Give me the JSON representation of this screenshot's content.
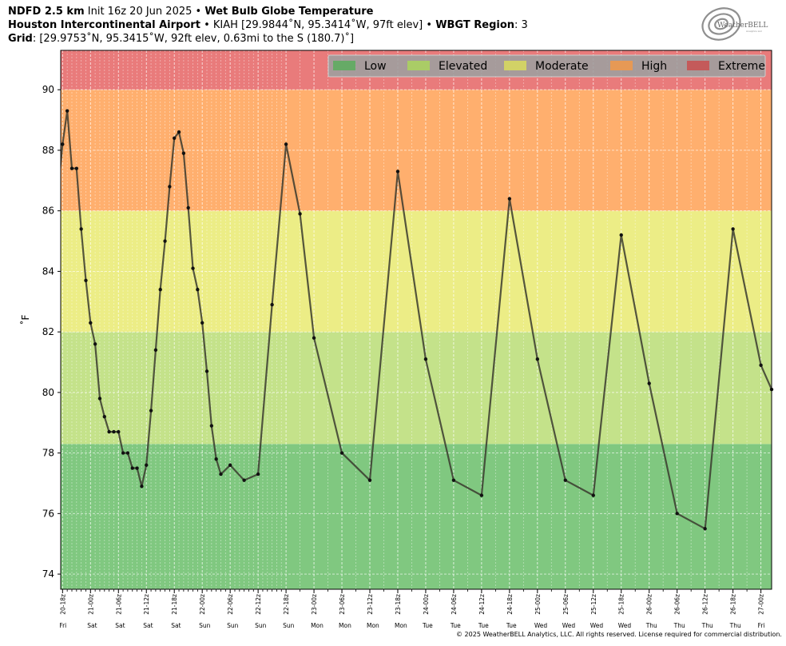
{
  "header": {
    "line1": {
      "model": "NDFD 2.5 km",
      "init": "Init 16z 20 Jun 2025",
      "sep": "•",
      "product": "Wet Bulb Globe Temperature"
    },
    "line2": {
      "station_name": "Houston Intercontinental Airport",
      "sep1": "•",
      "station_info": "KIAH [29.9844˚N, 95.3414˚W, 97ft elev]",
      "sep2": "•",
      "region_label": "WBGT Region",
      "region_value": ": 3"
    },
    "line3": {
      "grid_label": "Grid",
      "grid_info": ": [29.9753˚N, 95.3415˚W, 92ft elev, 0.63mi to the S (180.7)˚]"
    }
  },
  "logo": {
    "text": "WeatherBELL",
    "sub": "Analytics LLC"
  },
  "copyright": "© 2025 WeatherBELL Analytics, LLC. All rights reserved. License required for commercial distribution.",
  "chart_data": {
    "type": "line",
    "title": "Wet Bulb Globe Temperature",
    "ylabel": "˚F",
    "ylim": [
      73.5,
      91.3
    ],
    "yticks": [
      74,
      76,
      78,
      80,
      82,
      84,
      86,
      88,
      90
    ],
    "xlim": [
      -0.4,
      152.3
    ],
    "grid": true,
    "legend_position": "top-right",
    "categories_bands": [
      {
        "name": "Low",
        "from": 73.5,
        "to": 78.3,
        "color": "#80c880",
        "legend_color": "#66aa66"
      },
      {
        "name": "Elevated",
        "from": 78.3,
        "to": 82.0,
        "color": "#c4e28a",
        "legend_color": "#aacc66"
      },
      {
        "name": "Moderate",
        "from": 82.0,
        "to": 86.0,
        "color": "#eced86",
        "legend_color": "#d2d266"
      },
      {
        "name": "High",
        "from": 86.0,
        "to": 90.0,
        "color": "#ffaf6e",
        "legend_color": "#e69955"
      },
      {
        "name": "Extreme",
        "from": 90.0,
        "to": 91.3,
        "color": "#e97b7b",
        "legend_color": "#c45a5a"
      }
    ],
    "xtick_hours": [
      0,
      6,
      12,
      18,
      24,
      30,
      36,
      42,
      48,
      54,
      60,
      66,
      72,
      78,
      84,
      90,
      96,
      102,
      108,
      114,
      120,
      126,
      132,
      138,
      144,
      150
    ],
    "xtick_labels": [
      "20-18z",
      "21-00z",
      "21-06z",
      "21-12z",
      "21-18z",
      "22-00z",
      "22-06z",
      "22-12z",
      "22-18z",
      "23-00z",
      "23-06z",
      "23-12z",
      "23-18z",
      "24-00z",
      "24-06z",
      "24-12z",
      "24-18z",
      "25-00z",
      "25-06z",
      "25-12z",
      "25-18z",
      "26-00z",
      "26-06z",
      "26-12z",
      "26-18z",
      "27-00z"
    ],
    "xtick_days": [
      "Fri",
      "Sat",
      "Sat",
      "Sat",
      "Sat",
      "Sun",
      "Sun",
      "Sun",
      "Sun",
      "Mon",
      "Mon",
      "Mon",
      "Mon",
      "Tue",
      "Tue",
      "Tue",
      "Tue",
      "Wed",
      "Wed",
      "Wed",
      "Wed",
      "Thu",
      "Thu",
      "Thu",
      "Thu",
      "Fri"
    ],
    "series": [
      {
        "hours": [
          -1,
          0,
          1,
          2,
          3,
          4,
          5,
          6,
          7,
          8,
          9,
          10,
          11,
          12,
          13,
          14,
          15,
          16,
          17,
          18,
          19,
          20,
          21,
          22,
          23,
          24,
          25,
          26,
          27,
          28,
          29,
          30,
          31,
          32,
          33,
          34,
          36,
          39,
          42,
          45,
          48,
          51,
          54,
          60,
          66,
          72,
          78,
          84,
          90,
          96,
          102,
          108,
          114,
          120,
          126,
          132,
          138,
          144,
          150,
          152.3
        ],
        "values": [
          86.6,
          88.2,
          89.3,
          87.4,
          87.4,
          85.4,
          83.7,
          82.3,
          81.6,
          79.8,
          79.2,
          78.7,
          78.7,
          78.7,
          78.0,
          78.0,
          77.5,
          77.5,
          76.9,
          77.6,
          79.4,
          81.4,
          83.4,
          85.0,
          86.8,
          88.4,
          88.6,
          87.9,
          86.1,
          84.1,
          83.4,
          82.3,
          80.7,
          78.9,
          77.8,
          77.3,
          77.6,
          77.1,
          77.3,
          82.9,
          88.2,
          85.9,
          81.8,
          78.0,
          77.1,
          87.3,
          81.1,
          77.1,
          76.6,
          86.4,
          81.1,
          77.1,
          76.6,
          85.2,
          80.3,
          76.0,
          75.5,
          85.4,
          80.9,
          80.1
        ]
      }
    ]
  }
}
